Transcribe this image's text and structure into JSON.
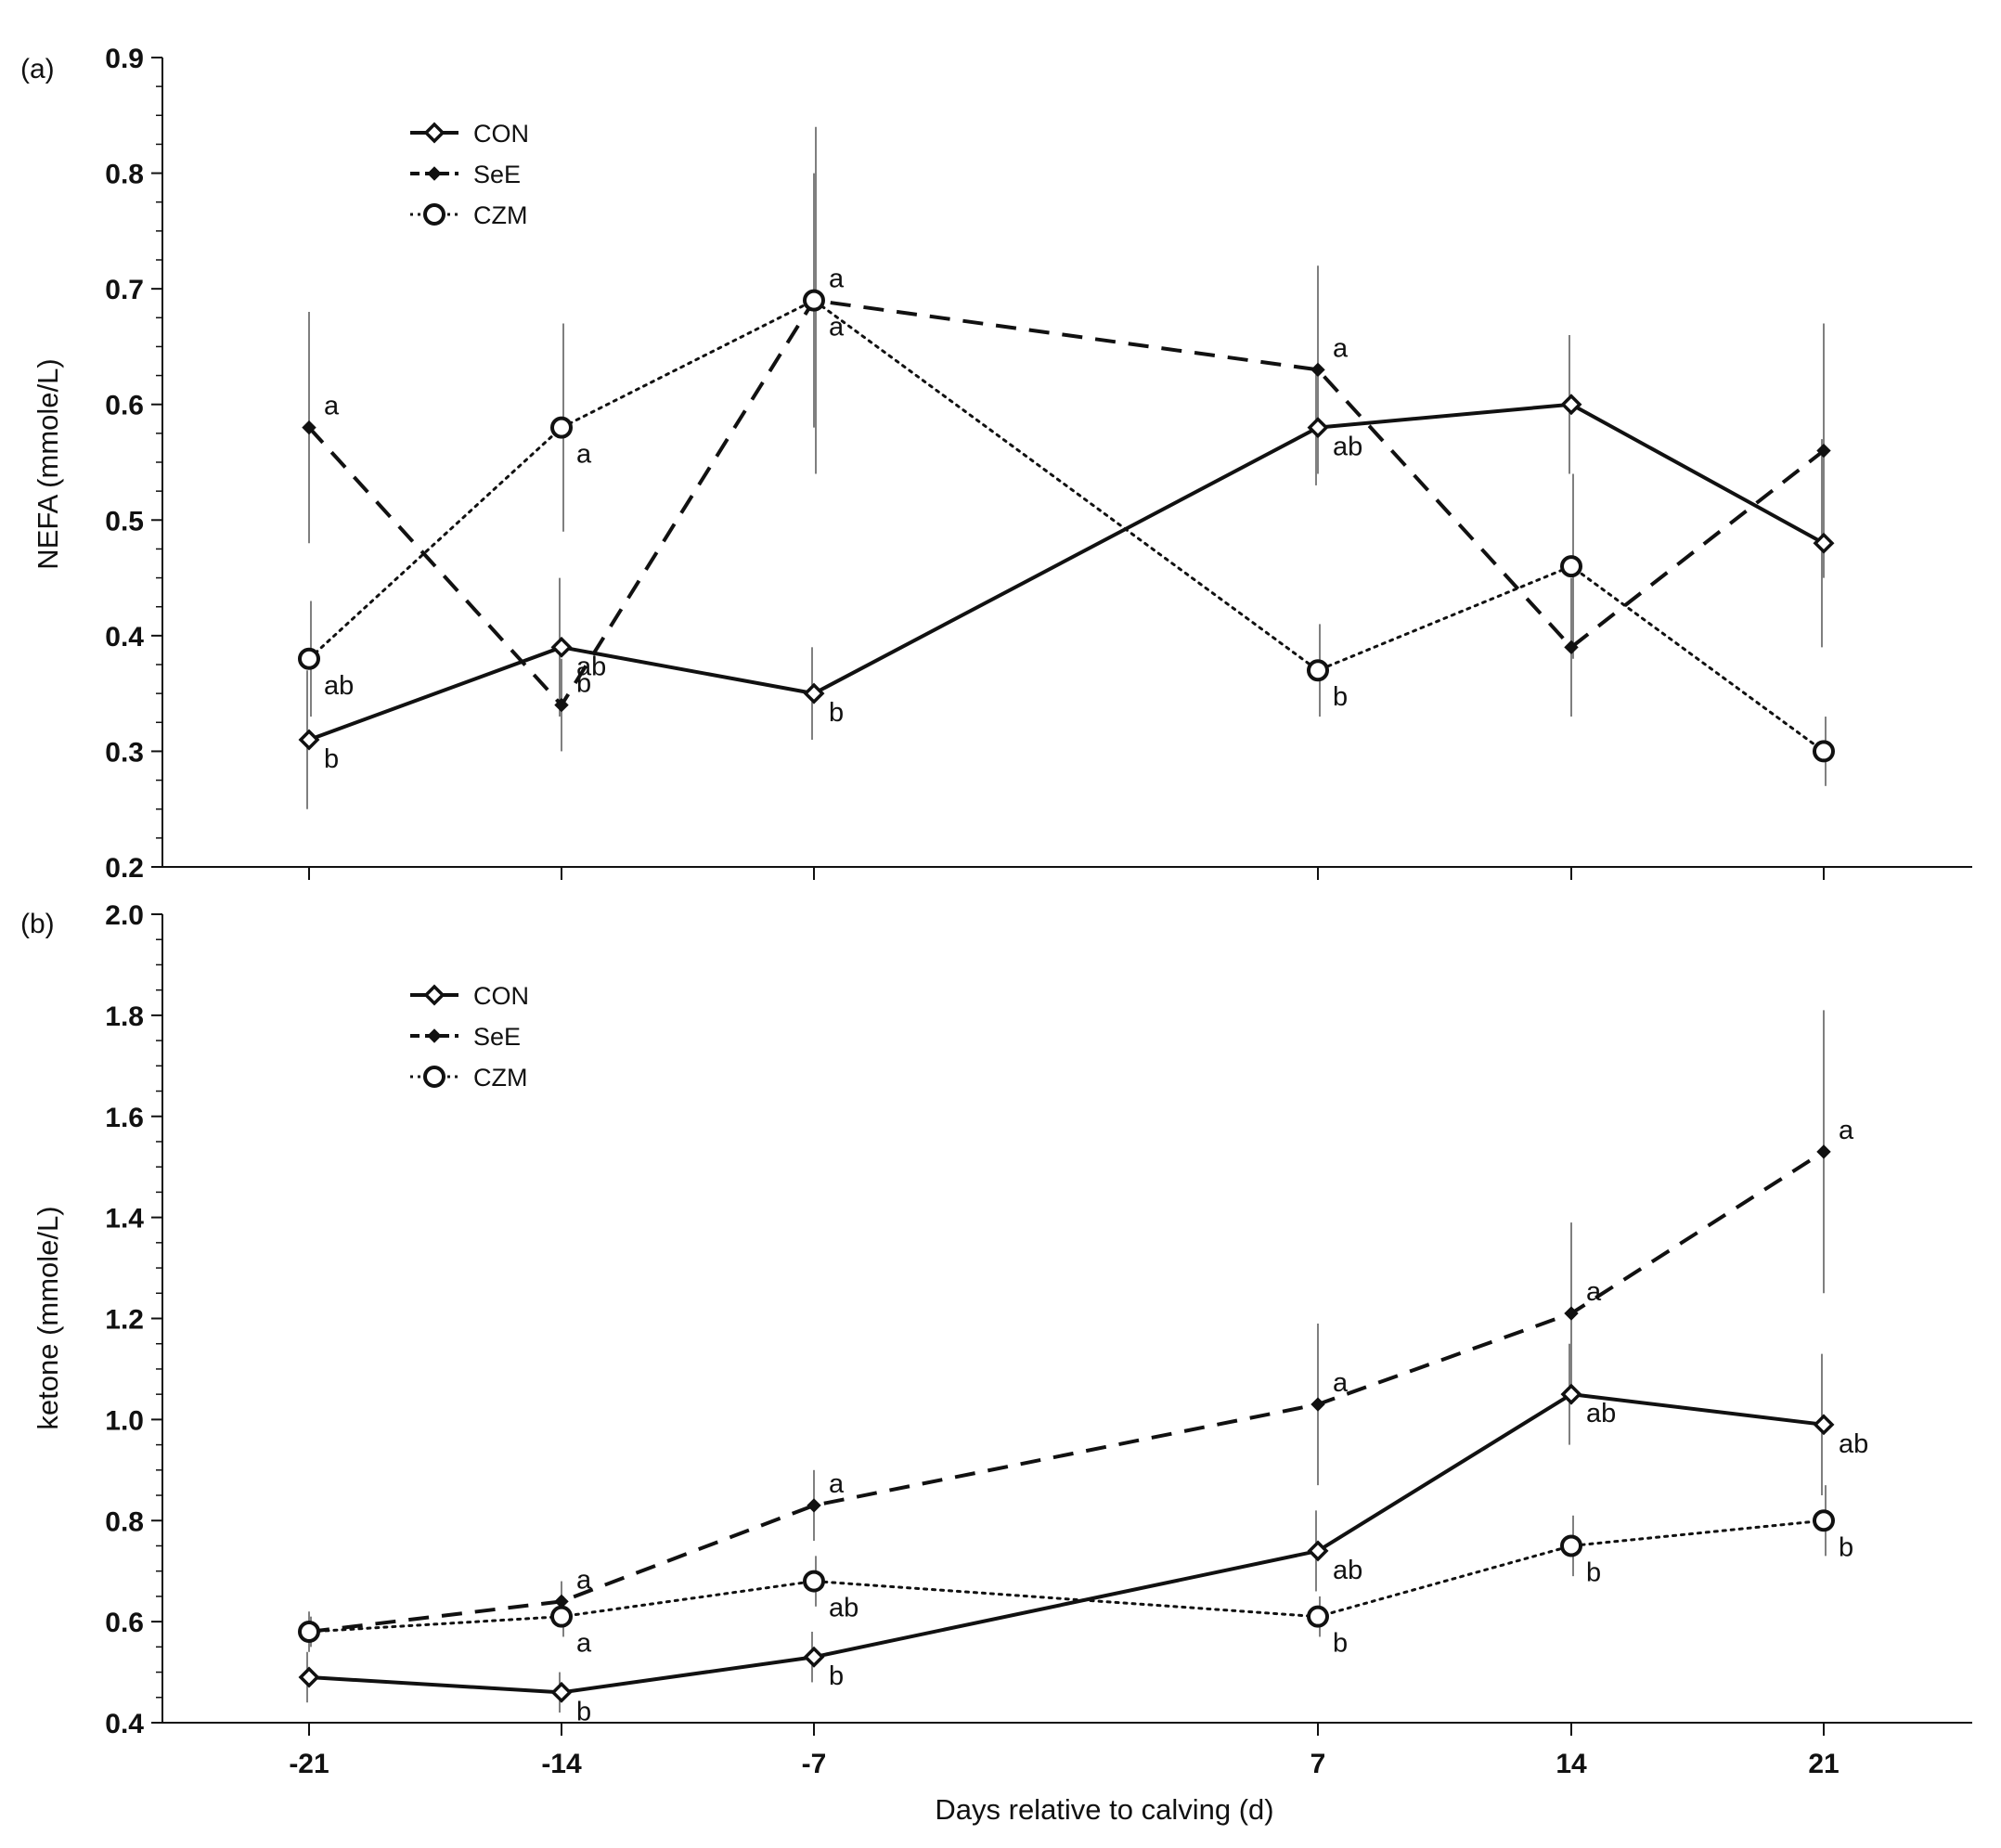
{
  "chart_data": [
    {
      "type": "line",
      "panel_label": "(a)",
      "ylabel": "NEFA (mmole/L)",
      "xlabel": "",
      "x": [
        -21,
        -14,
        -7,
        7,
        14,
        21
      ],
      "x_tick_labels": [
        "-21",
        "-14",
        "-7",
        "7",
        "14",
        "21"
      ],
      "ylim": [
        0.2,
        0.9
      ],
      "y_ticks": [
        "0.2",
        "0.3",
        "0.4",
        "0.5",
        "0.6",
        "0.7",
        "0.8",
        "0.9"
      ],
      "legend": [
        "CON",
        "SeE",
        "CZM"
      ],
      "legend_position": "top-left",
      "series": [
        {
          "name": "CON",
          "style": "solid",
          "marker": "open-diamond",
          "values": [
            0.31,
            0.39,
            0.35,
            0.58,
            0.6,
            0.48
          ],
          "errors": [
            0.06,
            0.06,
            0.04,
            0.05,
            0.06,
            0.09
          ],
          "labels": [
            "b",
            "ab",
            "b",
            "ab",
            "",
            ""
          ]
        },
        {
          "name": "SeE",
          "style": "dashed",
          "marker": "filled-diamond",
          "values": [
            0.58,
            0.34,
            0.69,
            0.63,
            0.39,
            0.56
          ],
          "errors": [
            0.1,
            0.04,
            0.11,
            0.09,
            0.06,
            0.11
          ],
          "labels": [
            "a",
            "b",
            "a",
            "a",
            "",
            ""
          ]
        },
        {
          "name": "CZM",
          "style": "dotted",
          "marker": "open-circle",
          "values": [
            0.38,
            0.58,
            0.69,
            0.37,
            0.46,
            0.3
          ],
          "errors": [
            0.05,
            0.09,
            0.15,
            0.04,
            0.08,
            0.03
          ],
          "labels": [
            "ab",
            "a",
            "a",
            "b",
            "",
            ""
          ]
        }
      ]
    },
    {
      "type": "line",
      "panel_label": "(b)",
      "ylabel": "ketone (mmole/L)",
      "xlabel": "Days relative to calving (d)",
      "x": [
        -21,
        -14,
        -7,
        7,
        14,
        21
      ],
      "x_tick_labels": [
        "-21",
        "-14",
        "-7",
        "7",
        "14",
        "21"
      ],
      "ylim": [
        0.4,
        2.0
      ],
      "y_ticks": [
        "0.4",
        "0.6",
        "0.8",
        "1.0",
        "1.2",
        "1.4",
        "1.6",
        "1.8",
        "2.0"
      ],
      "legend": [
        "CON",
        "SeE",
        "CZM"
      ],
      "legend_position": "top-left",
      "series": [
        {
          "name": "CON",
          "style": "solid",
          "marker": "open-diamond",
          "values": [
            0.49,
            0.46,
            0.53,
            0.74,
            1.05,
            0.99
          ],
          "errors": [
            0.05,
            0.04,
            0.05,
            0.08,
            0.1,
            0.14
          ],
          "labels": [
            "",
            "b",
            "b",
            "ab",
            "ab",
            "ab"
          ]
        },
        {
          "name": "SeE",
          "style": "dashed",
          "marker": "filled-diamond",
          "values": [
            0.58,
            0.64,
            0.83,
            1.03,
            1.21,
            1.53
          ],
          "errors": [
            0.04,
            0.04,
            0.07,
            0.16,
            0.18,
            0.28
          ],
          "labels": [
            "",
            "a",
            "a",
            "a",
            "a",
            "a"
          ]
        },
        {
          "name": "CZM",
          "style": "dotted",
          "marker": "open-circle",
          "values": [
            0.58,
            0.61,
            0.68,
            0.61,
            0.75,
            0.8
          ],
          "errors": [
            0.03,
            0.04,
            0.05,
            0.04,
            0.06,
            0.07
          ],
          "labels": [
            "",
            "a",
            "ab",
            "b",
            "b",
            "b"
          ]
        }
      ]
    }
  ]
}
